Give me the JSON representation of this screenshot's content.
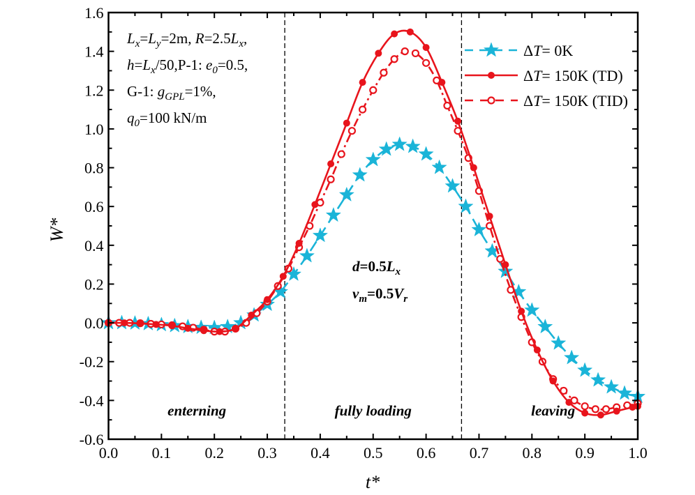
{
  "chart_data": {
    "type": "line",
    "title": "",
    "xlabel": "t*",
    "ylabel": "W*",
    "xlim": [
      0.0,
      1.0
    ],
    "ylim": [
      -0.6,
      1.6
    ],
    "xticks": [
      "0.0",
      "0.1",
      "0.2",
      "0.3",
      "0.4",
      "0.5",
      "0.6",
      "0.7",
      "0.8",
      "0.9",
      "1.0"
    ],
    "yticks": [
      "-0.6",
      "-0.4",
      "-0.2",
      "0.0",
      "0.2",
      "0.4",
      "0.6",
      "0.8",
      "1.0",
      "1.2",
      "1.4",
      "1.6"
    ],
    "grid": false,
    "legend_position": "top-right",
    "vertical_lines": [
      0.333,
      0.667
    ],
    "region_labels": [
      {
        "text": "enterning",
        "x": 0.167
      },
      {
        "text": "fully loading",
        "x": 0.5
      },
      {
        "text": "leaving",
        "x": 0.84
      }
    ],
    "parameters_text": [
      "Lx=Ly=2m,  R=2.5Lx,",
      "h=Lx/50,P-1: e0=0.5,",
      "G-1: gGPL=1%,",
      "q0=100 kN/m"
    ],
    "case_text": [
      "d=0.5Lx",
      "vm=0.5Vr"
    ],
    "series": [
      {
        "name": "ΔT= 0K",
        "color": "#1ab4d8",
        "line": "dashed",
        "marker": "star",
        "x": [
          0.0,
          0.025,
          0.05,
          0.075,
          0.1,
          0.125,
          0.15,
          0.175,
          0.2,
          0.225,
          0.25,
          0.275,
          0.3,
          0.325,
          0.35,
          0.375,
          0.4,
          0.425,
          0.45,
          0.475,
          0.5,
          0.525,
          0.55,
          0.575,
          0.6,
          0.625,
          0.65,
          0.675,
          0.7,
          0.725,
          0.75,
          0.775,
          0.8,
          0.825,
          0.85,
          0.875,
          0.9,
          0.925,
          0.95,
          0.975,
          1.0
        ],
        "y": [
          0.0,
          0.0,
          -0.002,
          -0.005,
          -0.01,
          -0.015,
          -0.02,
          -0.024,
          -0.025,
          -0.02,
          0.0,
          0.04,
          0.095,
          0.16,
          0.25,
          0.345,
          0.45,
          0.555,
          0.66,
          0.762,
          0.841,
          0.895,
          0.92,
          0.909,
          0.87,
          0.801,
          0.705,
          0.6,
          0.48,
          0.37,
          0.265,
          0.16,
          0.065,
          -0.02,
          -0.105,
          -0.18,
          -0.245,
          -0.295,
          -0.331,
          -0.363,
          -0.38
        ]
      },
      {
        "name": "ΔT= 150K (TD)",
        "color": "#e8141c",
        "line": "solid",
        "marker": "filled-circle",
        "x": [
          0.0,
          0.03,
          0.06,
          0.09,
          0.12,
          0.15,
          0.18,
          0.21,
          0.24,
          0.27,
          0.3,
          0.33,
          0.36,
          0.39,
          0.42,
          0.45,
          0.48,
          0.51,
          0.54,
          0.57,
          0.6,
          0.63,
          0.66,
          0.69,
          0.72,
          0.75,
          0.78,
          0.81,
          0.84,
          0.87,
          0.9,
          0.93,
          0.96,
          0.99,
          1.0
        ],
        "y": [
          0.0,
          0.0,
          -0.003,
          -0.008,
          -0.015,
          -0.028,
          -0.04,
          -0.045,
          -0.03,
          0.04,
          0.12,
          0.24,
          0.41,
          0.61,
          0.82,
          1.03,
          1.24,
          1.39,
          1.49,
          1.5,
          1.42,
          1.24,
          1.04,
          0.8,
          0.55,
          0.3,
          0.06,
          -0.14,
          -0.3,
          -0.41,
          -0.465,
          -0.475,
          -0.455,
          -0.435,
          -0.43
        ]
      },
      {
        "name": "ΔT= 150K (TID)",
        "color": "#e8141c",
        "line": "dash-dot",
        "marker": "open-circle",
        "x": [
          0.0,
          0.02,
          0.04,
          0.06,
          0.08,
          0.1,
          0.12,
          0.14,
          0.16,
          0.18,
          0.2,
          0.22,
          0.24,
          0.26,
          0.28,
          0.3,
          0.32,
          0.34,
          0.36,
          0.38,
          0.4,
          0.42,
          0.44,
          0.46,
          0.48,
          0.5,
          0.52,
          0.54,
          0.56,
          0.58,
          0.6,
          0.62,
          0.64,
          0.66,
          0.68,
          0.7,
          0.72,
          0.74,
          0.76,
          0.78,
          0.8,
          0.82,
          0.84,
          0.86,
          0.88,
          0.9,
          0.92,
          0.94,
          0.96,
          0.98,
          1.0
        ],
        "y": [
          0.0,
          0.0,
          0.0,
          -0.002,
          -0.005,
          -0.008,
          -0.012,
          -0.018,
          -0.025,
          -0.035,
          -0.045,
          -0.045,
          -0.03,
          0.0,
          0.05,
          0.11,
          0.19,
          0.28,
          0.39,
          0.5,
          0.62,
          0.74,
          0.87,
          0.99,
          1.1,
          1.2,
          1.29,
          1.36,
          1.4,
          1.39,
          1.34,
          1.25,
          1.12,
          0.99,
          0.85,
          0.68,
          0.5,
          0.33,
          0.17,
          0.03,
          -0.1,
          -0.2,
          -0.29,
          -0.35,
          -0.4,
          -0.43,
          -0.445,
          -0.445,
          -0.435,
          -0.425,
          -0.415
        ]
      }
    ]
  }
}
